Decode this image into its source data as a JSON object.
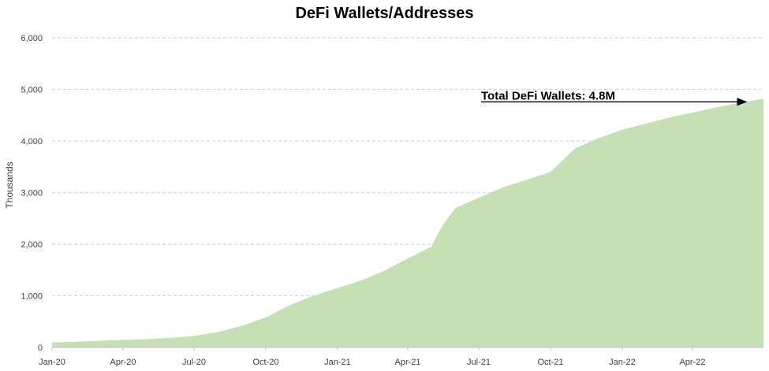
{
  "chart_data": {
    "type": "area",
    "title": "DeFi Wallets/Addresses",
    "ylabel": "Thousands",
    "xlabel": "",
    "ylim": [
      0,
      6000
    ],
    "yticks": [
      "0",
      "1,000",
      "2,000",
      "3,000",
      "4,000",
      "5,000",
      "6,000"
    ],
    "xticks": [
      "Jan-20",
      "Apr-20",
      "Jul-20",
      "Oct-20",
      "Jan-21",
      "Apr-21",
      "Jul-21",
      "Oct-21",
      "Jan-22",
      "Apr-22"
    ],
    "grid": "horizontal dashed",
    "color": "#c5e0b4",
    "series": [
      {
        "x": [
          "2020-01-01",
          "2020-02-01",
          "2020-03-01",
          "2020-04-01",
          "2020-05-01",
          "2020-06-01",
          "2020-07-01",
          "2020-08-01",
          "2020-09-01",
          "2020-10-01",
          "2020-11-01",
          "2020-12-01",
          "2021-01-01",
          "2021-02-01",
          "2021-03-01",
          "2021-04-01",
          "2021-05-01",
          "2021-05-15",
          "2021-06-01",
          "2021-07-01",
          "2021-08-01",
          "2021-09-01",
          "2021-10-01",
          "2021-11-01",
          "2021-12-01",
          "2022-01-01",
          "2022-02-01",
          "2022-03-01",
          "2022-04-01",
          "2022-05-01",
          "2022-06-01",
          "2022-07-01"
        ],
        "values": [
          95,
          110,
          130,
          145,
          160,
          185,
          220,
          300,
          420,
          580,
          820,
          1000,
          1150,
          1300,
          1480,
          1720,
          1950,
          2350,
          2700,
          2900,
          3100,
          3250,
          3400,
          3850,
          4050,
          4220,
          4340,
          4450,
          4550,
          4650,
          4740,
          4820
        ]
      }
    ],
    "annotation": {
      "text": "Total DeFi Wallets: 4.8M"
    }
  }
}
